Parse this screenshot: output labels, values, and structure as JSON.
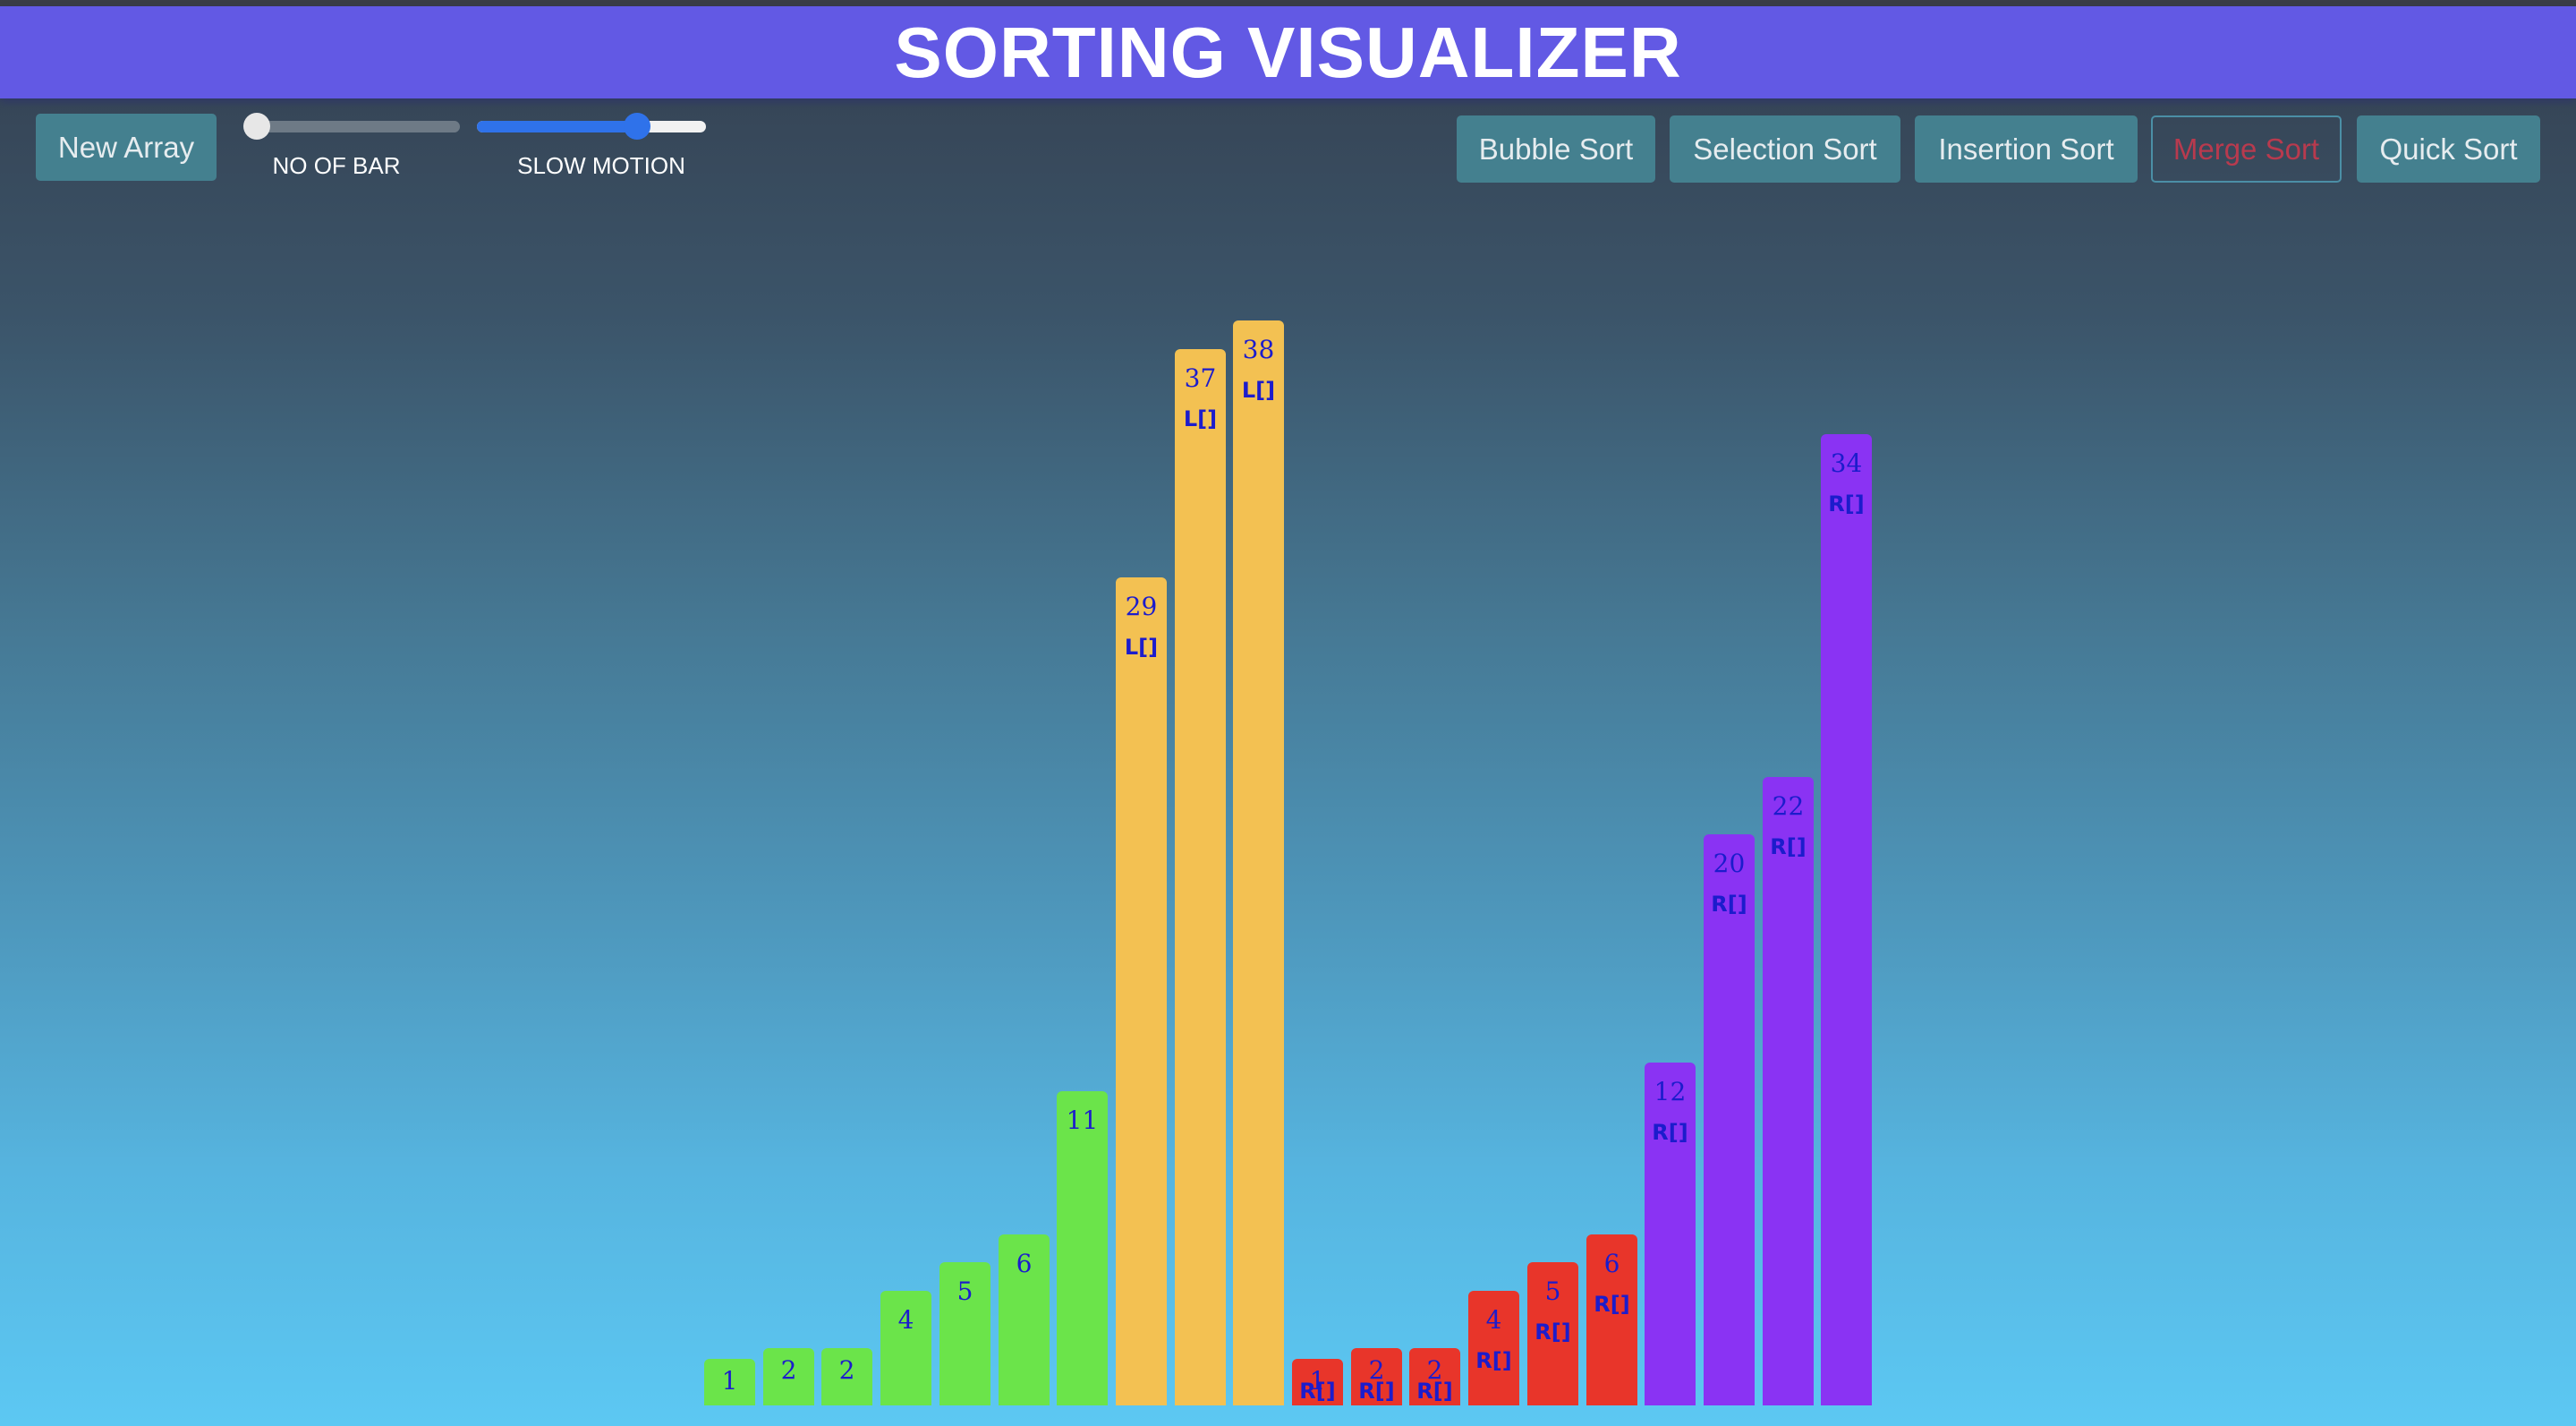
{
  "title": "SORTING VISUALIZER",
  "toolbar": {
    "new_array": "New Array",
    "bar_count_label": "NO OF BAR",
    "bar_count_value": 0.0,
    "speed_label": "SLOW MOTION",
    "speed_value": 0.7,
    "algorithms": [
      "Bubble Sort",
      "Selection Sort",
      "Insertion Sort",
      "Merge Sort",
      "Quick Sort"
    ],
    "active_algorithm": "Merge Sort"
  },
  "colors": {
    "header": "#6259e4",
    "button": "#44808f",
    "active_text": "#b83a4e",
    "sorted": "#6be44a",
    "left_half": "#f3c152",
    "right_half_compare": "#e8352a",
    "right_half": "#8a33f3",
    "label": "#1c1ccc",
    "slider_fill": "#2f72ea",
    "slider_track": "#6e7a86"
  },
  "chart_data": {
    "type": "bar",
    "max_value": 38,
    "bars": [
      {
        "value": 1,
        "tag": "",
        "state": "sorted"
      },
      {
        "value": 2,
        "tag": "",
        "state": "sorted"
      },
      {
        "value": 2,
        "tag": "",
        "state": "sorted"
      },
      {
        "value": 4,
        "tag": "",
        "state": "sorted"
      },
      {
        "value": 5,
        "tag": "",
        "state": "sorted"
      },
      {
        "value": 6,
        "tag": "",
        "state": "sorted"
      },
      {
        "value": 11,
        "tag": "",
        "state": "sorted"
      },
      {
        "value": 29,
        "tag": "L[]",
        "state": "left_half"
      },
      {
        "value": 37,
        "tag": "L[]",
        "state": "left_half"
      },
      {
        "value": 38,
        "tag": "L[]",
        "state": "left_half"
      },
      {
        "value": 1,
        "tag": "R[]",
        "state": "right_half_compare"
      },
      {
        "value": 2,
        "tag": "R[]",
        "state": "right_half_compare"
      },
      {
        "value": 2,
        "tag": "R[]",
        "state": "right_half_compare"
      },
      {
        "value": 4,
        "tag": "R[]",
        "state": "right_half_compare"
      },
      {
        "value": 5,
        "tag": "R[]",
        "state": "right_half_compare"
      },
      {
        "value": 6,
        "tag": "R[]",
        "state": "right_half_compare"
      },
      {
        "value": 12,
        "tag": "R[]",
        "state": "right_half"
      },
      {
        "value": 20,
        "tag": "R[]",
        "state": "right_half"
      },
      {
        "value": 22,
        "tag": "R[]",
        "state": "right_half"
      },
      {
        "value": 34,
        "tag": "R[]",
        "state": "right_half"
      }
    ]
  }
}
